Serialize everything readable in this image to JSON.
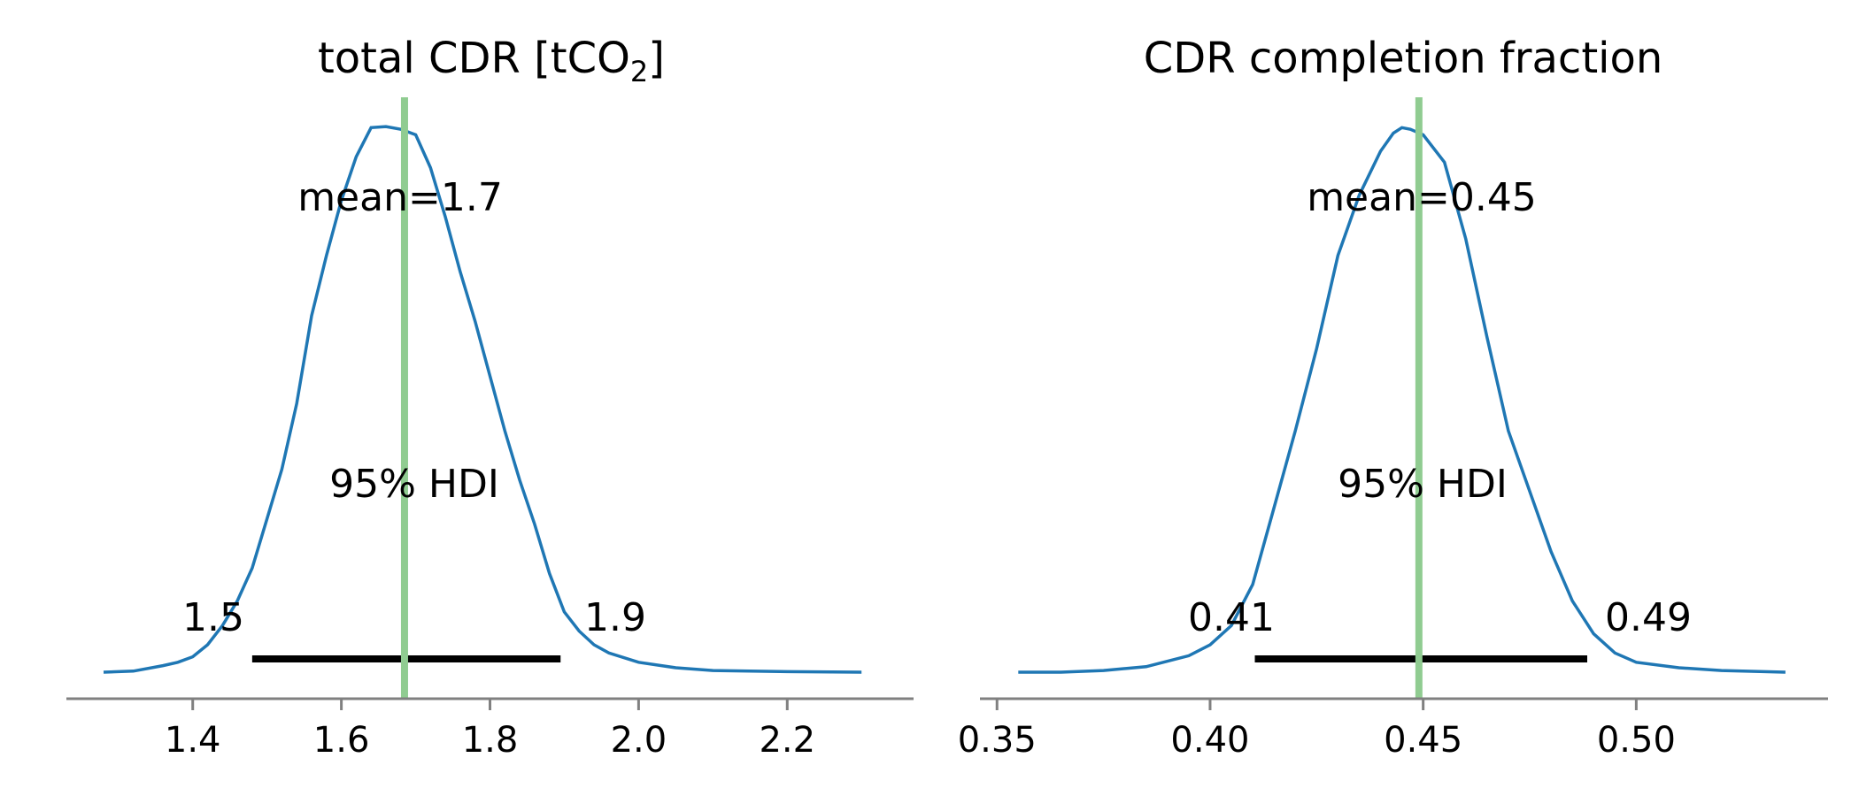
{
  "chart_data": [
    {
      "type": "density",
      "title": "total CDR [tCO",
      "title_subscript": "2",
      "title_suffix": "]",
      "xlabel": "",
      "ylabel": "",
      "xlim": [
        1.23,
        2.37
      ],
      "ylim": [
        0,
        1.0
      ],
      "xticks": [
        1.4,
        1.6,
        1.8,
        2.0,
        2.2
      ],
      "xtick_labels": [
        "1.4",
        "1.6",
        "1.8",
        "2.0",
        "2.2"
      ],
      "mean": 1.685,
      "mean_label": "mean=1.7",
      "hdi_label": "95% HDI",
      "hdi": [
        1.48,
        1.895
      ],
      "hdi_low_label": "1.5",
      "hdi_high_label": "1.9",
      "density_x": [
        1.28,
        1.32,
        1.36,
        1.38,
        1.4,
        1.42,
        1.44,
        1.46,
        1.47,
        1.48,
        1.5,
        1.52,
        1.54,
        1.56,
        1.58,
        1.6,
        1.62,
        1.64,
        1.66,
        1.68,
        1.7,
        1.72,
        1.74,
        1.76,
        1.78,
        1.8,
        1.82,
        1.84,
        1.86,
        1.88,
        1.9,
        1.92,
        1.94,
        1.96,
        2.0,
        2.05,
        2.1,
        2.2,
        2.3
      ],
      "density_y": [
        0.0,
        0.002,
        0.012,
        0.018,
        0.028,
        0.05,
        0.085,
        0.13,
        0.16,
        0.19,
        0.28,
        0.37,
        0.49,
        0.65,
        0.76,
        0.86,
        0.94,
        0.993,
        0.995,
        0.99,
        0.98,
        0.92,
        0.83,
        0.73,
        0.64,
        0.54,
        0.44,
        0.35,
        0.27,
        0.18,
        0.11,
        0.075,
        0.05,
        0.035,
        0.018,
        0.008,
        0.003,
        0.001,
        0.0
      ]
    },
    {
      "type": "density",
      "title": "CDR completion fraction",
      "title_subscript": "",
      "title_suffix": "",
      "xlabel": "",
      "ylabel": "",
      "xlim": [
        0.346,
        0.545
      ],
      "ylim": [
        0,
        1.0
      ],
      "xticks": [
        0.35,
        0.4,
        0.45,
        0.5
      ],
      "xtick_labels": [
        "0.35",
        "0.40",
        "0.45",
        "0.50"
      ],
      "mean": 0.449,
      "mean_label": "mean=0.45",
      "hdi_label": "95% HDI",
      "hdi": [
        0.4105,
        0.4885
      ],
      "hdi_low_label": "0.41",
      "hdi_high_label": "0.49",
      "density_x": [
        0.355,
        0.365,
        0.375,
        0.385,
        0.395,
        0.4,
        0.405,
        0.41,
        0.415,
        0.42,
        0.425,
        0.43,
        0.435,
        0.44,
        0.443,
        0.445,
        0.447,
        0.45,
        0.455,
        0.46,
        0.465,
        0.47,
        0.475,
        0.48,
        0.485,
        0.49,
        0.495,
        0.5,
        0.51,
        0.52,
        0.535
      ],
      "density_y": [
        0.0,
        0.0,
        0.003,
        0.01,
        0.03,
        0.05,
        0.085,
        0.16,
        0.3,
        0.44,
        0.59,
        0.76,
        0.87,
        0.95,
        0.983,
        0.993,
        0.99,
        0.98,
        0.93,
        0.79,
        0.61,
        0.44,
        0.33,
        0.22,
        0.13,
        0.07,
        0.035,
        0.018,
        0.008,
        0.003,
        0.0
      ]
    }
  ]
}
